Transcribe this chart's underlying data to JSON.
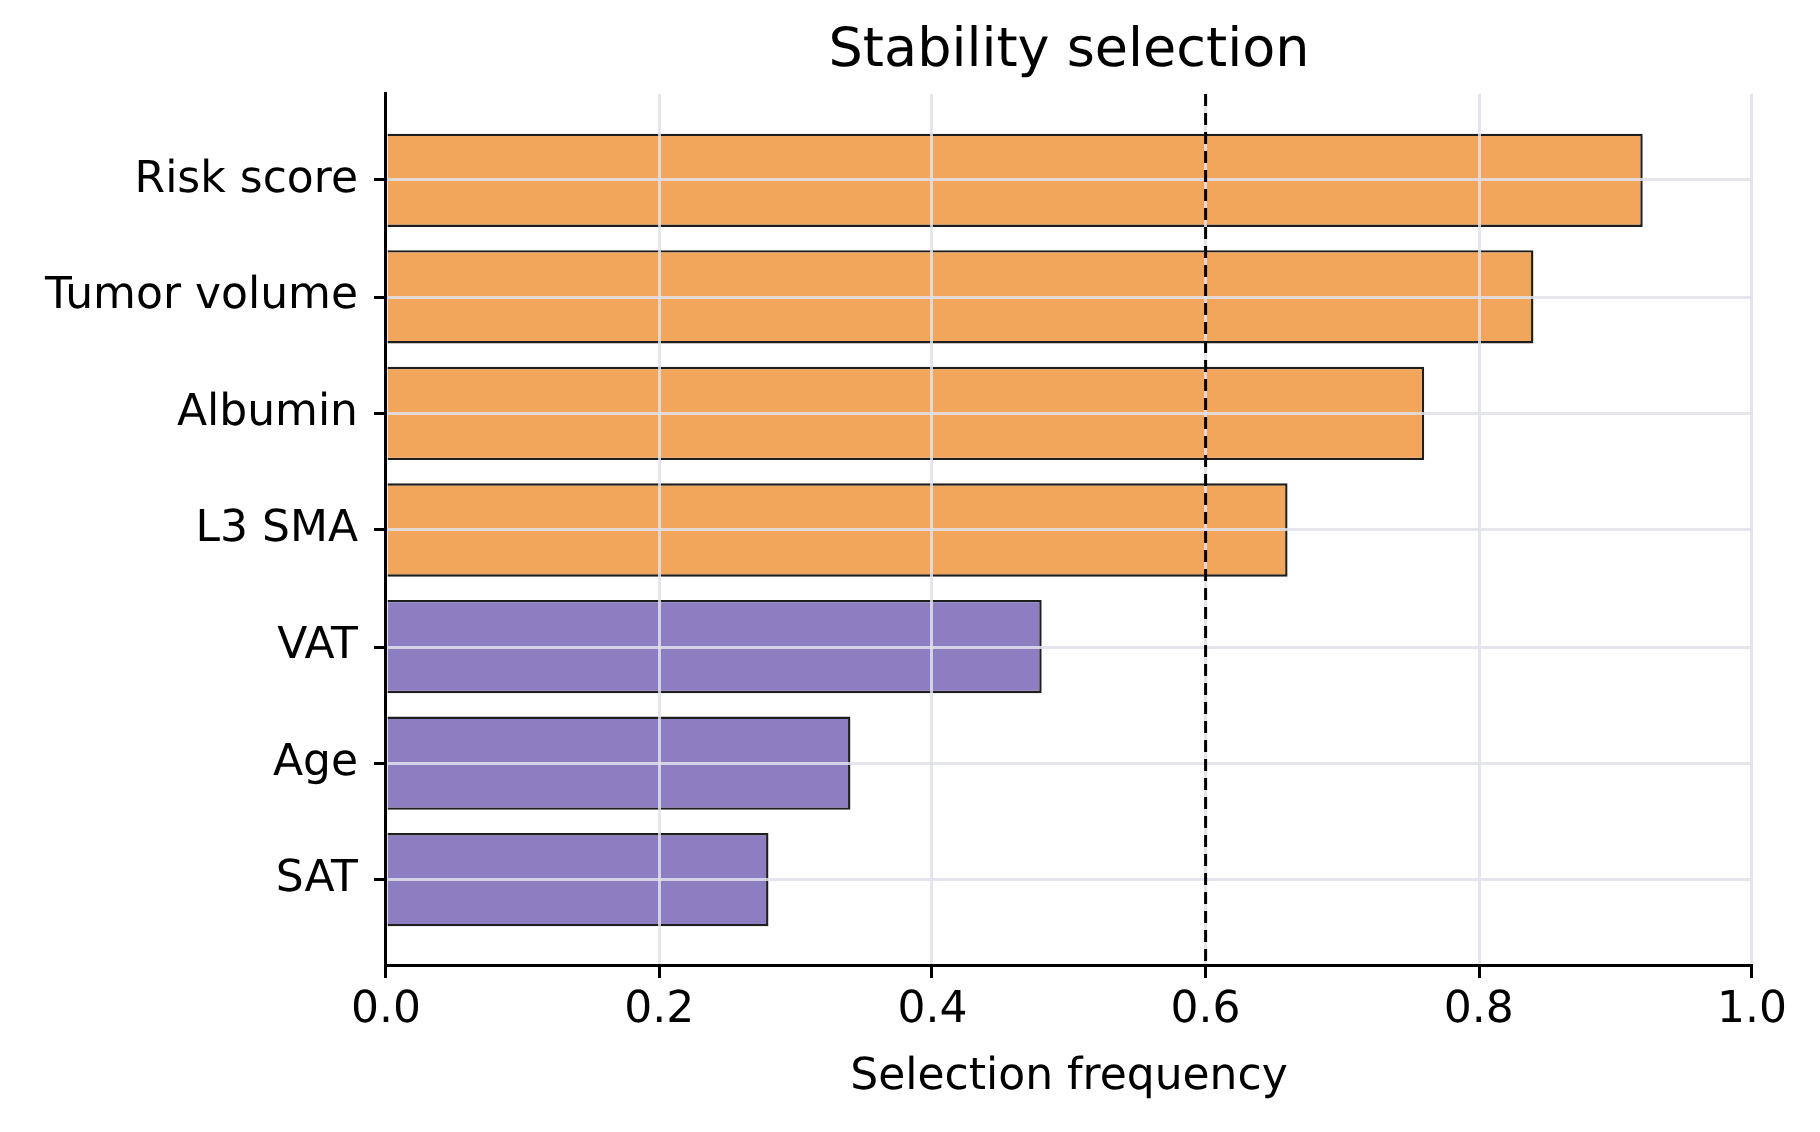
{
  "chart_data": {
    "type": "bar",
    "orientation": "horizontal",
    "title": "Stability selection",
    "xlabel": "Selection frequency",
    "categories": [
      "Risk score",
      "Tumor volume",
      "Albumin",
      "L3 SMA",
      "VAT",
      "Age",
      "SAT"
    ],
    "values": [
      0.92,
      0.84,
      0.76,
      0.66,
      0.48,
      0.34,
      0.28
    ],
    "colors": [
      "#f1a65b",
      "#f1a65b",
      "#f1a65b",
      "#f1a65b",
      "#8c7ec1",
      "#8c7ec1",
      "#8c7ec1"
    ],
    "xlim": [
      0,
      1
    ],
    "xticks": [
      {
        "value": 0,
        "label": "0.0"
      },
      0.2,
      0.4,
      0.6,
      0.8,
      {
        "value": 1,
        "label": "1.0"
      }
    ],
    "grid": true,
    "ref_lines": [
      {
        "axis": "x",
        "value": 0.6,
        "color": "#000000",
        "line_style": "dashed"
      }
    ]
  }
}
